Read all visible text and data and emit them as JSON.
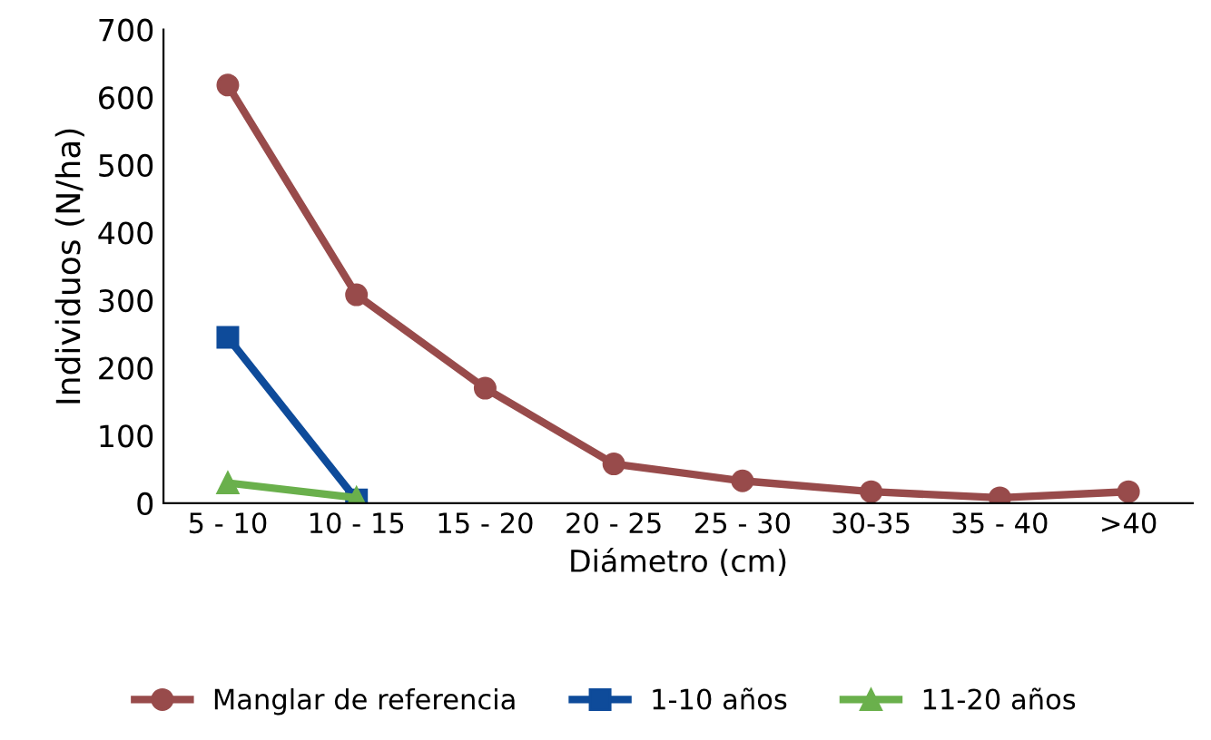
{
  "chart_data": {
    "type": "line",
    "xlabel": "Diámetro (cm)",
    "ylabel": "Individuos (N/ha)",
    "categories": [
      "5 - 10",
      "10 - 15",
      "15 - 20",
      "20 - 25",
      "25 - 30",
      "30-35",
      "35 - 40",
      ">40"
    ],
    "series": [
      {
        "name": "Manglar de referencia",
        "color": "#984b4b",
        "marker": "circle",
        "values": [
          618,
          308,
          170,
          58,
          33,
          17,
          8,
          17
        ]
      },
      {
        "name": "1-10 años",
        "color": "#0e4b9a",
        "marker": "square",
        "values": [
          245,
          5,
          null,
          null,
          null,
          null,
          null,
          null
        ]
      },
      {
        "name": "11-20 años",
        "color": "#6ab04c",
        "marker": "triangle",
        "values": [
          30,
          8,
          null,
          null,
          null,
          null,
          null,
          null
        ]
      }
    ],
    "ylim": [
      0,
      700
    ],
    "yticks": [
      0,
      100,
      200,
      300,
      400,
      500,
      600,
      700
    ],
    "grid": false,
    "legend": "bottom",
    "line_style": "solid"
  }
}
